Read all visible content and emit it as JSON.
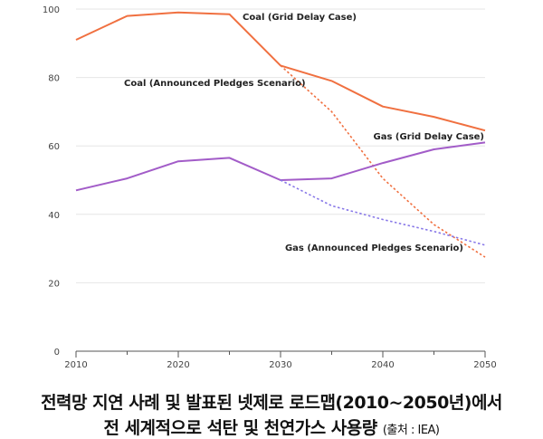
{
  "chart_data": {
    "type": "line",
    "xlim": [
      2010,
      2050
    ],
    "ylim": [
      0,
      100
    ],
    "x_ticks": [
      "2010",
      "2020",
      "2030",
      "2040",
      "2050"
    ],
    "y_ticks": [
      "0",
      "20",
      "40",
      "60",
      "80",
      "100"
    ],
    "grid": "horizontal",
    "series": [
      {
        "name": "Coal (Grid Delay Case)",
        "color": "#f07040",
        "dash": "solid",
        "x": [
          2010,
          2015,
          2020,
          2025,
          2030,
          2035,
          2040,
          2045,
          2050
        ],
        "y": [
          91,
          98,
          99,
          98.5,
          83.5,
          79,
          71.5,
          68.5,
          64.5
        ]
      },
      {
        "name": "Coal (Announced Pledges Scenario)",
        "color": "#f07040",
        "dash": "dotted",
        "x": [
          2030,
          2035,
          2040,
          2045,
          2050
        ],
        "y": [
          83.5,
          70,
          50.5,
          37,
          27.5
        ]
      },
      {
        "name": "Gas (Grid Delay Case)",
        "color": "#a25cc8",
        "dash": "solid",
        "x": [
          2010,
          2015,
          2020,
          2025,
          2030,
          2035,
          2040,
          2045,
          2050
        ],
        "y": [
          47,
          50.5,
          55.5,
          56.5,
          50,
          50.5,
          55,
          59,
          61
        ]
      },
      {
        "name": "Gas (Announced Pledges Scenario)",
        "color": "#8878e8",
        "dash": "dotted",
        "x": [
          2030,
          2035,
          2040,
          2045,
          2050
        ],
        "y": [
          50,
          42.5,
          38.5,
          35,
          31
        ]
      }
    ]
  },
  "caption": {
    "line1": "전력망 지연 사례 및 발표된 넷제로 로드맵(2010~2050년)에서",
    "line2": "전 세계적으로 석탄 및 천연가스 사용량",
    "source": "(출처 : IEA)"
  }
}
